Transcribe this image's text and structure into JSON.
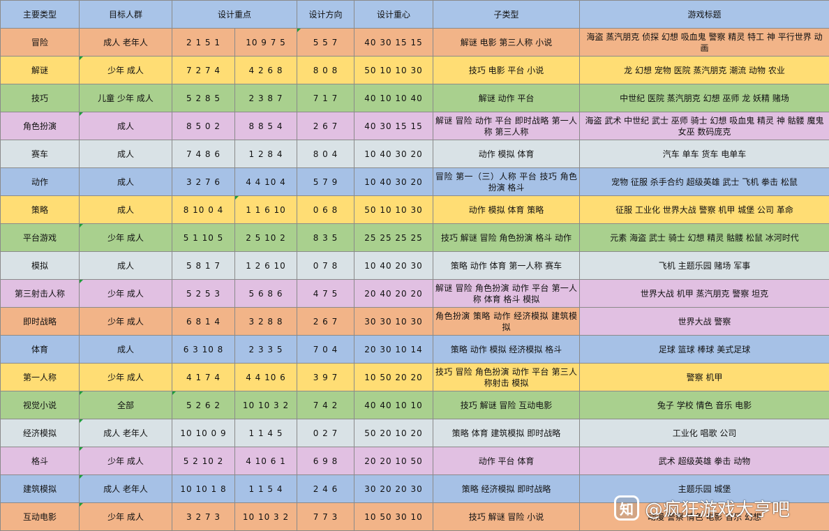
{
  "colors": {
    "header": "#a9c4e8",
    "orange": "#f2b488",
    "yellow": "#ffdd74",
    "green": "#a9d08e",
    "pink": "#e1c0e2",
    "gray": "#d9e2e6",
    "blue": "#a6c1e6"
  },
  "headers": {
    "type": "主要类型",
    "audience": "目标人群",
    "focus": "设计重点",
    "direction": "设计方向",
    "center": "设计重心",
    "subtypes": "子类型",
    "titles": "游戏标题"
  },
  "rows": [
    {
      "type": "冒险",
      "audience": "成人 老年人",
      "focus_a": "2 1 5 1",
      "focus_b": "10 9 7 5",
      "direction": "5 5 7",
      "center": "40 30 15 15",
      "subtypes": "解谜 电影 第三人称 小说",
      "titles": "海盗 蒸汽朋克 侦探 幻想 吸血鬼 警察 精灵 特工 神 平行世界 动画"
    },
    {
      "type": "解谜",
      "audience": "少年 成人",
      "focus_a": "7 2 7 4",
      "focus_b": "4 2 6 8",
      "direction": "8 0 8",
      "center": "50 10 10 30",
      "subtypes": "技巧 电影 平台 小说",
      "titles": "龙 幻想 宠物 医院 蒸汽朋克 潮流 动物 农业"
    },
    {
      "type": "技巧",
      "audience": "儿童 少年 成人",
      "focus_a": "5 2 8 5",
      "focus_b": "2 3 8 7",
      "direction": "7 1 7",
      "center": "40 10 10 40",
      "subtypes": "解谜 动作 平台",
      "titles": "中世纪 医院 蒸汽朋克 幻想 巫师 龙 妖精 赌场"
    },
    {
      "type": "角色扮演",
      "audience": "成人",
      "focus_a": "8 5 0 2",
      "focus_b": "8 8 5 4",
      "direction": "2 6 7",
      "center": "40 30 15 15",
      "subtypes": "解谜 冒险 动作 平台 即时战略 第一人称 第三人称",
      "titles": "海盗 武术 中世纪 武士 巫师 骑士 幻想 吸血鬼 精灵 神 骷髅 魔鬼 女巫 数码庞克"
    },
    {
      "type": "赛车",
      "audience": "成人",
      "focus_a": "7 4 8 6",
      "focus_b": "1 2 8 4",
      "direction": "8 0 4",
      "center": "10 40 30 20",
      "subtypes": "动作 模拟 体育",
      "titles": "汽车 单车 货车 电单车"
    },
    {
      "type": "动作",
      "audience": "成人",
      "focus_a": "3 2 7 6",
      "focus_b": "4 4 10 4",
      "direction": "5 7 9",
      "center": "10 40 30 20",
      "subtypes": "冒险 第一（三）人称 平台 技巧 角色扮演 格斗",
      "titles": "宠物 征服 杀手合约 超级英雄 武士 飞机 拳击 松鼠"
    },
    {
      "type": "策略",
      "audience": "成人",
      "focus_a": "8 10 0 4",
      "focus_b": "1 1 6 10",
      "direction": "0 6 8",
      "center": "50 10 10 30",
      "subtypes": "动作 模拟 体育 策略",
      "titles": "征服 工业化 世界大战 警察 机甲 城堡 公司 革命"
    },
    {
      "type": "平台游戏",
      "audience": "少年 成人",
      "focus_a": "5 1 10 5",
      "focus_b": "2 5 10 2",
      "direction": "8 3 5",
      "center": "25 25 25 25",
      "subtypes": "技巧 解谜 冒险 角色扮演 格斗 动作",
      "titles": "元素 海盗 武士 骑士 幻想 精灵 骷髅 松鼠 冰河时代"
    },
    {
      "type": "模拟",
      "audience": "成人",
      "focus_a": "5 8 1 7",
      "focus_b": "1 2 6 10",
      "direction": "0 7 8",
      "center": "10 40 20 30",
      "subtypes": "策略 动作 体育 第一人称 赛车",
      "titles": "飞机 主题乐园 赌场 军事"
    },
    {
      "type": "第三射击人称",
      "audience": "少年 成人",
      "focus_a": "5 2 5 3",
      "focus_b": "5 6 8 6",
      "direction": "4 7 5",
      "center": "20 40 20 20",
      "subtypes": "解谜 冒险 角色扮演 动作 平台 第一人称 体育 格斗 模拟",
      "titles": "世界大战 机甲 蒸汽朋克 警察 坦克"
    },
    {
      "type": "即时战略",
      "audience": "少年 成人",
      "focus_a": "6 8 1 4",
      "focus_b": "3 2 8 8",
      "direction": "2 6 7",
      "center": "30 30 10 30",
      "subtypes": "角色扮演 策略 动作 经济模拟 建筑模拟",
      "titles": "世界大战 警察"
    },
    {
      "type": "体育",
      "audience": "成人",
      "focus_a": "6 3 10 8",
      "focus_b": "2 3 3 5",
      "direction": "7 0 4",
      "center": "20 30 10 14",
      "subtypes": "策略 动作 模拟 经济模拟 格斗",
      "titles": "足球 篮球 棒球 美式足球"
    },
    {
      "type": "第一人称",
      "audience": "少年 成人",
      "focus_a": "4 1 7 4",
      "focus_b": "4 4 10 6",
      "direction": "3 9 7",
      "center": "10 50 20 20",
      "subtypes": "技巧 冒险 角色扮演 动作 平台 第三人称射击 模拟",
      "titles": "警察 机甲"
    },
    {
      "type": "视觉小说",
      "audience": "全部",
      "focus_a": "5 2 6 2",
      "focus_b": "10 10 3 2",
      "direction": "7 4 2",
      "center": "40 40 10 10",
      "subtypes": "技巧 解谜 冒险 互动电影",
      "titles": "兔子 学校 情色 音乐 电影"
    },
    {
      "type": "经济模拟",
      "audience": "成人 老年人",
      "focus_a": "10 10 0 9",
      "focus_b": "1 1 4 5",
      "direction": "0 2 7",
      "center": "50 20 10 20",
      "subtypes": "策略 体育 建筑模拟 即时战略",
      "titles": "工业化 唱歌 公司"
    },
    {
      "type": "格斗",
      "audience": "少年 成人",
      "focus_a": "5 2 10 2",
      "focus_b": "4 10 6 1",
      "direction": "6 9 8",
      "center": "20 20 10 50",
      "subtypes": "动作 平台 体育",
      "titles": "武术 超级英雄 拳击 动物"
    },
    {
      "type": "建筑模拟",
      "audience": "成人 老年人",
      "focus_a": "10 10 1 8",
      "focus_b": "1 1 5 4",
      "direction": "2 4 6",
      "center": "30 20 20 30",
      "subtypes": "策略 经济模拟 即时战略",
      "titles": "主题乐园 城堡"
    },
    {
      "type": "互动电影",
      "audience": "少年 成人",
      "focus_a": "3 2 7 3",
      "focus_b": "10 10 3 2",
      "direction": "7 7 3",
      "center": "10 50 30 10",
      "subtypes": "技巧 解谜 冒险 小说",
      "titles": "动漫 警察 情色 电影 音乐 幻想"
    }
  ],
  "watermark": {
    "logo": "知",
    "text": "@疯狂游戏大亨吧"
  }
}
